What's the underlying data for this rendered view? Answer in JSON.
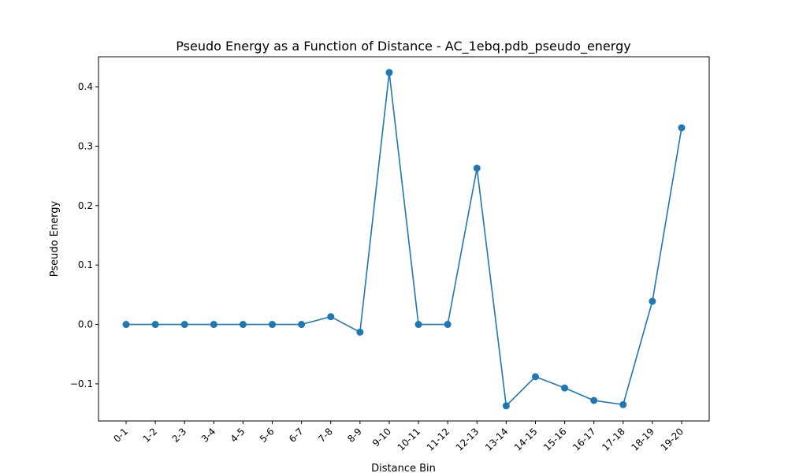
{
  "chart_data": {
    "type": "line",
    "title": "Pseudo Energy as a Function of Distance - AC_1ebq.pdb_pseudo_energy",
    "xlabel": "Distance Bin",
    "ylabel": "Pseudo Energy",
    "categories": [
      "0-1",
      "1-2",
      "2-3",
      "3-4",
      "4-5",
      "5-6",
      "6-7",
      "7-8",
      "8-9",
      "9-10",
      "10-11",
      "11-12",
      "12-13",
      "13-14",
      "14-15",
      "15-16",
      "16-17",
      "17-18",
      "18-19",
      "19-20"
    ],
    "series": [
      {
        "values": [
          0.0,
          0.0,
          0.0,
          0.0,
          0.0,
          0.0,
          0.0,
          0.013,
          -0.013,
          0.424,
          0.0,
          0.0,
          0.263,
          -0.137,
          -0.088,
          -0.107,
          -0.128,
          -0.135,
          0.039,
          0.331
        ],
        "color": "#1f77b4",
        "marker": "circle"
      }
    ],
    "ylim": [
      -0.1625,
      0.4505
    ],
    "yticks": [
      -0.1,
      0.0,
      0.1,
      0.2,
      0.3,
      0.4
    ],
    "ytick_labels": [
      "−0.1",
      "0.0",
      "0.1",
      "0.2",
      "0.3",
      "0.4"
    ],
    "grid": false,
    "legend": "none"
  }
}
